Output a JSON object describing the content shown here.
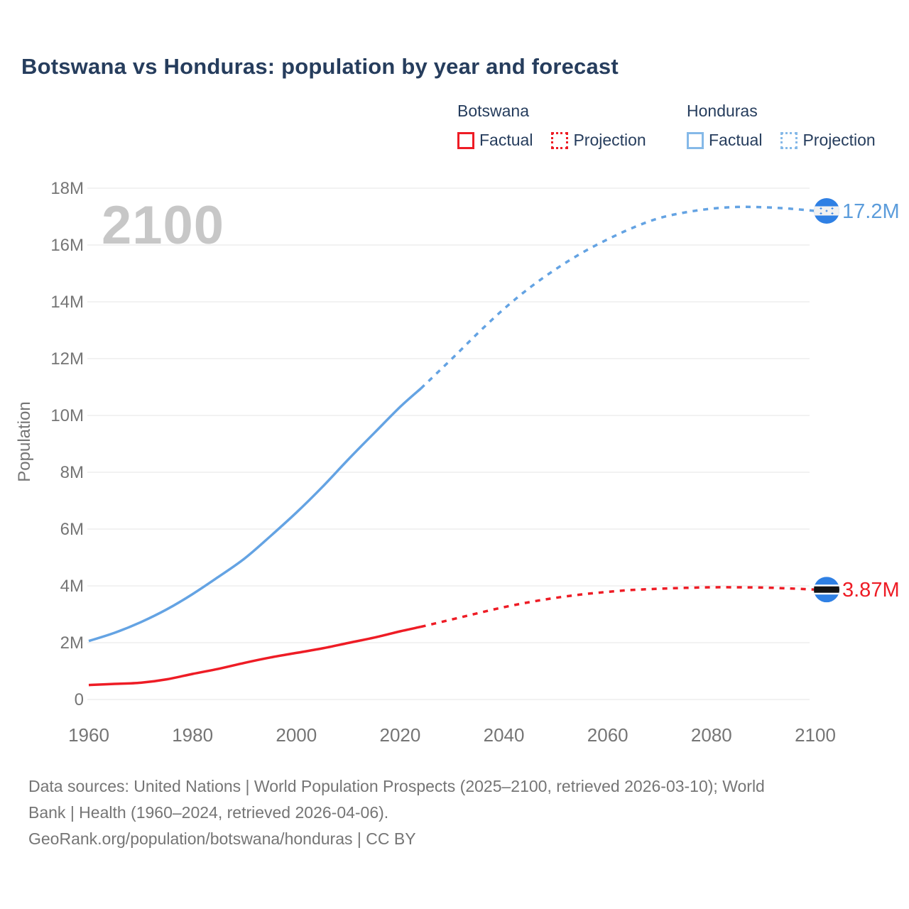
{
  "title": "Botswana vs Honduras: population by year and forecast",
  "legend": {
    "groups": [
      {
        "name": "Botswana",
        "color": "#ee1c25",
        "items": [
          {
            "label": "Factual",
            "style": "solid"
          },
          {
            "label": "Projection",
            "style": "dotted"
          }
        ]
      },
      {
        "name": "Honduras",
        "color": "#85b9e8",
        "items": [
          {
            "label": "Factual",
            "style": "solid"
          },
          {
            "label": "Projection",
            "style": "dotted"
          }
        ]
      }
    ]
  },
  "chart_data": {
    "type": "line",
    "title": "Botswana vs Honduras: population by year and forecast",
    "xlabel": "",
    "ylabel": "Population",
    "unit": "millions of people",
    "xlim": [
      1960,
      2100
    ],
    "ylim_millions": [
      0,
      18
    ],
    "x_ticks": [
      1960,
      1980,
      2000,
      2020,
      2040,
      2060,
      2080,
      2100
    ],
    "y_ticks": [
      {
        "value": 0,
        "label": "0"
      },
      {
        "value": 2,
        "label": "2M"
      },
      {
        "value": 4,
        "label": "4M"
      },
      {
        "value": 6,
        "label": "6M"
      },
      {
        "value": 8,
        "label": "8M"
      },
      {
        "value": 10,
        "label": "10M"
      },
      {
        "value": 12,
        "label": "12M"
      },
      {
        "value": 14,
        "label": "14M"
      },
      {
        "value": 16,
        "label": "16M"
      },
      {
        "value": 18,
        "label": "18M"
      }
    ],
    "watermark": "2100",
    "grid": true,
    "colors": {
      "botswana": "#ee1c25",
      "honduras_line": "#64a3e3",
      "honduras_label": "#5b9cdb",
      "flag_blue": "#2f80e4",
      "grid": "#eaeaea",
      "axis_text": "#757575",
      "watermark": "#c7c7c7",
      "title_text": "#263d5d"
    },
    "series": [
      {
        "id": "botswana-factual",
        "name": "Botswana Factual",
        "style": "solid",
        "color": "#ee1c25",
        "years": [
          1960,
          1965,
          1970,
          1975,
          1980,
          1985,
          1990,
          1995,
          2000,
          2005,
          2010,
          2015,
          2020,
          2024
        ],
        "values_millions": [
          0.51,
          0.55,
          0.59,
          0.71,
          0.9,
          1.08,
          1.29,
          1.48,
          1.64,
          1.8,
          1.99,
          2.18,
          2.4,
          2.56
        ]
      },
      {
        "id": "botswana-projection",
        "name": "Botswana Projection",
        "style": "dotted",
        "color": "#ee1c25",
        "years": [
          2024,
          2030,
          2035,
          2040,
          2045,
          2050,
          2055,
          2060,
          2065,
          2070,
          2075,
          2080,
          2085,
          2090,
          2095,
          2100
        ],
        "values_millions": [
          2.56,
          2.82,
          3.04,
          3.25,
          3.43,
          3.58,
          3.7,
          3.79,
          3.86,
          3.9,
          3.93,
          3.95,
          3.95,
          3.94,
          3.91,
          3.87
        ]
      },
      {
        "id": "honduras-factual",
        "name": "Honduras Factual",
        "style": "solid",
        "color": "#64a3e3",
        "years": [
          1960,
          1965,
          1970,
          1975,
          1980,
          1985,
          1990,
          1995,
          2000,
          2005,
          2010,
          2015,
          2020,
          2024
        ],
        "values_millions": [
          2.06,
          2.35,
          2.72,
          3.17,
          3.71,
          4.32,
          4.96,
          5.75,
          6.58,
          7.48,
          8.45,
          9.38,
          10.3,
          10.95
        ]
      },
      {
        "id": "honduras-projection",
        "name": "Honduras Projection",
        "style": "dotted",
        "color": "#64a3e3",
        "years": [
          2024,
          2030,
          2035,
          2040,
          2045,
          2050,
          2055,
          2060,
          2065,
          2070,
          2075,
          2080,
          2085,
          2090,
          2095,
          2100
        ],
        "values_millions": [
          10.95,
          12.0,
          12.9,
          13.75,
          14.5,
          15.15,
          15.72,
          16.2,
          16.62,
          16.95,
          17.15,
          17.28,
          17.34,
          17.33,
          17.28,
          17.2
        ]
      }
    ],
    "end_labels": [
      {
        "series": "Honduras",
        "flag": "honduras",
        "text": "17.2M",
        "value_millions": 17.2,
        "color": "#5b9cdb"
      },
      {
        "series": "Botswana",
        "flag": "botswana",
        "text": "3.87M",
        "value_millions": 3.87,
        "color": "#ee1c25"
      }
    ]
  },
  "footer": {
    "line1": "Data sources: United Nations | World Population Prospects (2025–2100, retrieved 2026-03-10); World",
    "line2": "Bank | Health (1960–2024, retrieved 2026-04-06).",
    "line3": "GeoRank.org/population/botswana/honduras | CC BY"
  }
}
